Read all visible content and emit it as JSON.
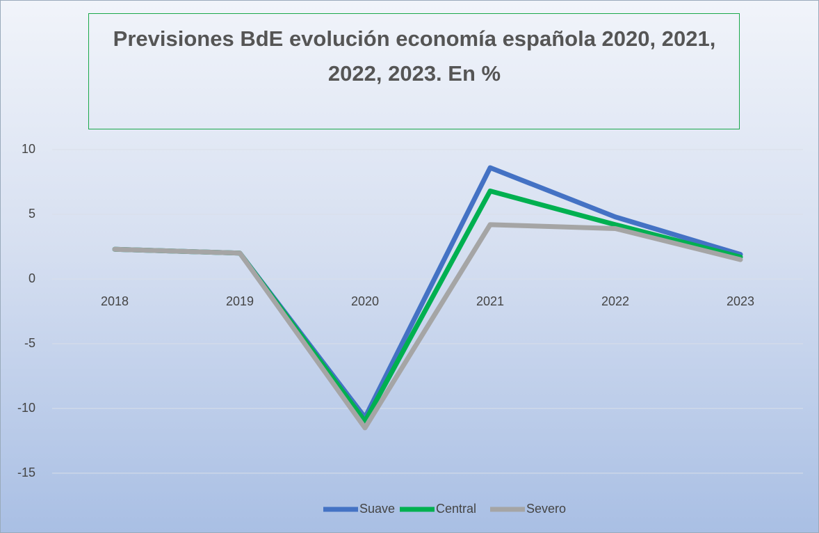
{
  "chart_data": {
    "type": "line",
    "title": "Previsiones BdE evolución economía española 2020, 2021, 2022, 2023. En %",
    "categories": [
      "2018",
      "2019",
      "2020",
      "2021",
      "2022",
      "2023"
    ],
    "series": [
      {
        "name": "Suave",
        "color": "#4472c4",
        "values": [
          2.3,
          2.0,
          -10.7,
          8.6,
          4.8,
          1.9
        ]
      },
      {
        "name": "Central",
        "color": "#00b050",
        "values": [
          2.3,
          2.0,
          -11.0,
          6.8,
          4.2,
          1.7
        ]
      },
      {
        "name": "Severo",
        "color": "#a5a5a5",
        "values": [
          2.3,
          2.0,
          -11.5,
          4.2,
          3.9,
          1.5
        ]
      }
    ],
    "ylim": [
      -15,
      10
    ],
    "yticks": [
      -15,
      -10,
      -5,
      0,
      5,
      10
    ],
    "grid": true,
    "legend": "bottom"
  }
}
